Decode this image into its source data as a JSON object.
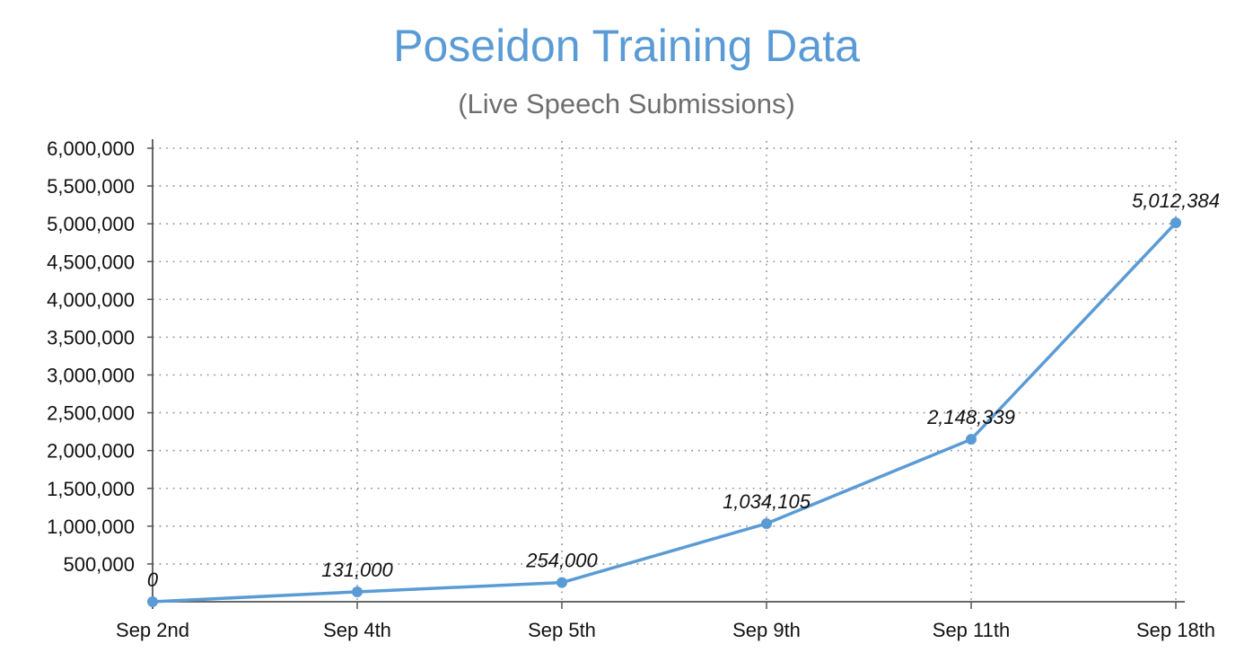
{
  "chart_data": {
    "type": "line",
    "title": "Poseidon Training Data",
    "subtitle": "(Live Speech Submissions)",
    "xlabel": "",
    "ylabel": "",
    "categories": [
      "Sep 2nd",
      "Sep 4th",
      "Sep 5th",
      "Sep 9th",
      "Sep 11th",
      "Sep 18th"
    ],
    "values": [
      0,
      131000,
      254000,
      1034105,
      2148339,
      5012384
    ],
    "data_labels": [
      "0",
      "131,000",
      "254,000",
      "1,034,105",
      "2,148,339",
      "5,012,384"
    ],
    "ylim": [
      0,
      6000000
    ],
    "y_ticks": [
      500000,
      1000000,
      1500000,
      2000000,
      2500000,
      3000000,
      3500000,
      4000000,
      4500000,
      5000000,
      5500000,
      6000000
    ],
    "y_tick_labels": [
      "500,000",
      "1,000,000",
      "1,500,000",
      "2,000,000",
      "2,500,000",
      "3,000,000",
      "3,500,000",
      "4,000,000",
      "4,500,000",
      "5,000,000",
      "5,500,000",
      "6,000,000"
    ],
    "grid": true,
    "grid_style": "dotted",
    "legend": false,
    "line_color": "#5b9bd5",
    "title_color": "#5b9bd5",
    "subtitle_color": "#6e6e6e"
  }
}
